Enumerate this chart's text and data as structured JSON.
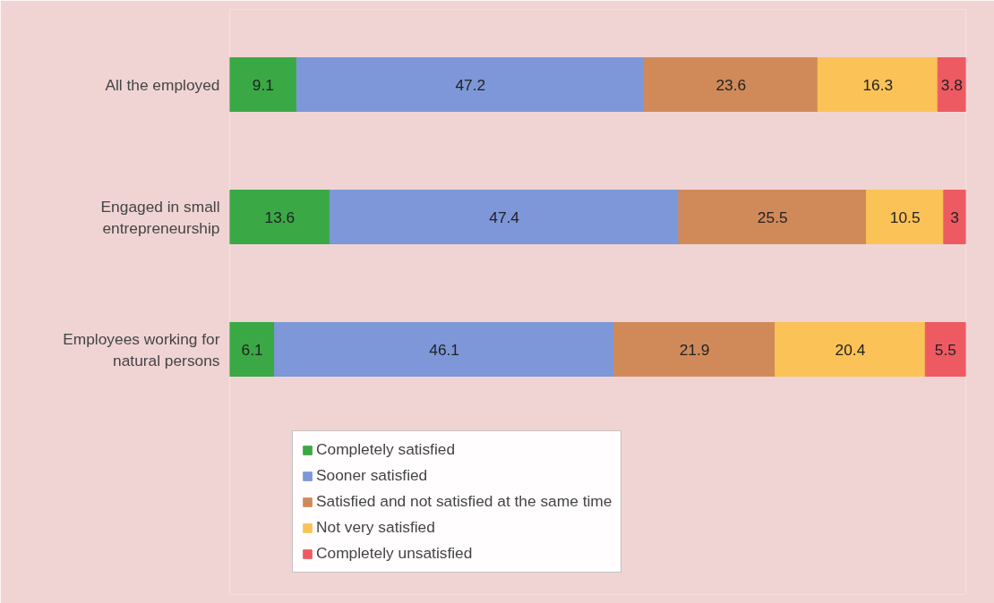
{
  "chart_data": {
    "type": "bar",
    "orientation": "horizontal",
    "stacked": true,
    "data_labels": true,
    "grid": false,
    "legend": "bottom",
    "tick_labels": "y",
    "xlim": [
      0,
      100
    ],
    "categories": [
      "All the employed",
      "Engaged in small entrepreneurship",
      "Employees working for natural persons"
    ],
    "series": [
      {
        "name": "Completely satisfied",
        "color": "#3aa845",
        "values": [
          9.1,
          13.6,
          6.1
        ]
      },
      {
        "name": "Sooner satisfied",
        "color": "#7d97d8",
        "values": [
          47.2,
          47.4,
          46.1
        ]
      },
      {
        "name": "Satisfied and not satisfied at the same time",
        "color": "#d08a5a",
        "values": [
          23.6,
          25.5,
          21.9
        ]
      },
      {
        "name": "Not very satisfied",
        "color": "#fbc257",
        "values": [
          16.3,
          10.5,
          20.4
        ]
      },
      {
        "name": "Completely unsatisfied",
        "color": "#ee5a62",
        "values": [
          3.8,
          3,
          5.5
        ]
      }
    ]
  }
}
